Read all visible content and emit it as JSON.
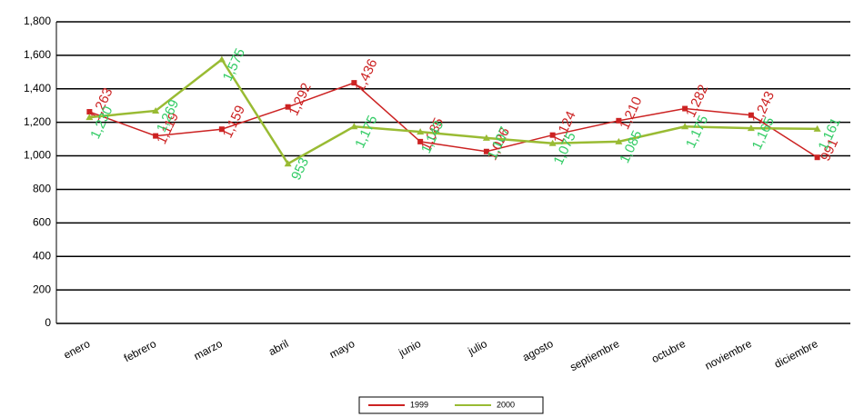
{
  "chart_data": {
    "type": "line",
    "categories": [
      "enero",
      "febrero",
      "marzo",
      "abril",
      "mayo",
      "junio",
      "julio",
      "agosto",
      "septiembre",
      "octubre",
      "noviembre",
      "diciembre"
    ],
    "series": [
      {
        "name": "1999",
        "color": "#cc2222",
        "label_color": "#cc2222",
        "values": [
          1263,
          1119,
          1159,
          1292,
          1436,
          1085,
          1026,
          1124,
          1210,
          1282,
          1243,
          991
        ],
        "value_labels": [
          "1,263",
          "1,119",
          "1,159",
          "1,292",
          "1,436",
          "1,085",
          "1,026",
          "1,124",
          "1,210",
          "1,282",
          "1,243",
          "991"
        ]
      },
      {
        "name": "2000",
        "color": "#99bb33",
        "label_color": "#33cc66",
        "values": [
          1230,
          1269,
          1575,
          953,
          1175,
          1143,
          1107,
          1075,
          1085,
          1175,
          1165,
          1161
        ],
        "value_labels": [
          "1,230",
          "1,269",
          "1,575",
          "953",
          "1,175",
          "1,143",
          "1,107",
          "1,075",
          "1,085",
          "1,175",
          "1,165",
          "1,161"
        ]
      }
    ],
    "ylim": [
      0,
      1800
    ],
    "yticks": [
      0,
      200,
      400,
      600,
      800,
      {
        "value": 1000,
        "label": "1,000"
      },
      {
        "value": 1200,
        "label": "1,200"
      },
      {
        "value": 1400,
        "label": "1,400"
      },
      {
        "value": 1600,
        "label": "1,600"
      },
      {
        "value": 1800,
        "label": "1,800"
      }
    ],
    "grid": true,
    "legend": "bottom"
  }
}
